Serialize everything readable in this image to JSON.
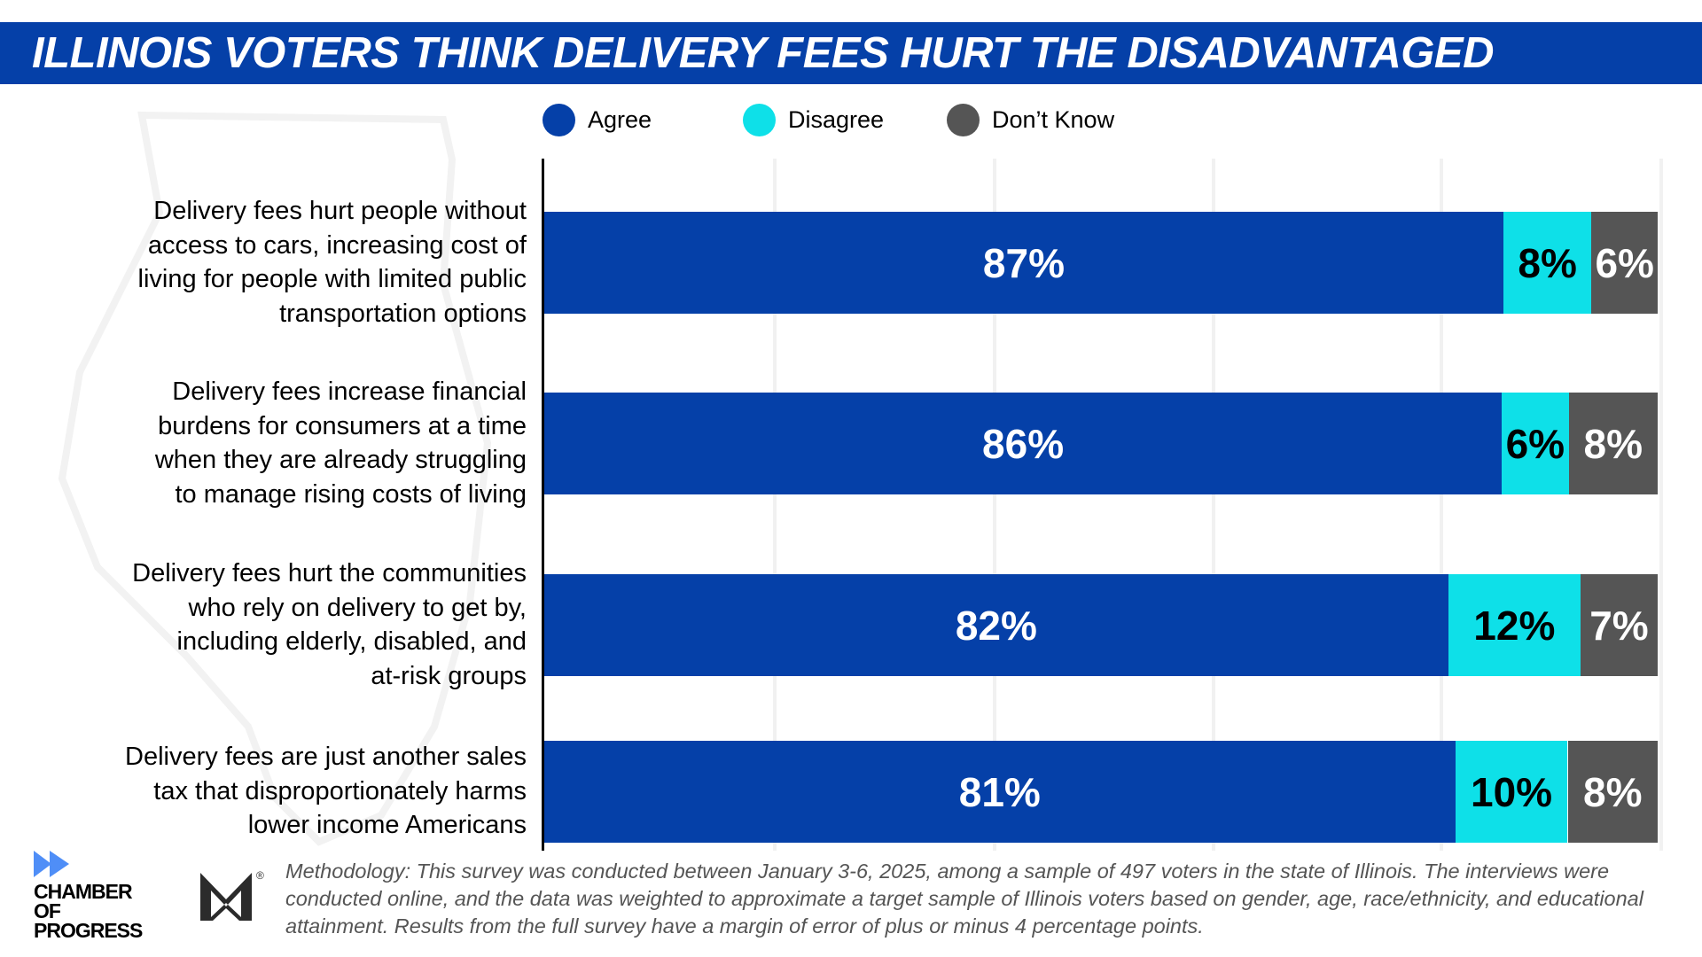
{
  "title": "ILLINOIS VOTERS THINK DELIVERY FEES HURT THE DISADVANTAGED",
  "colors": {
    "agree": "#0540a8",
    "disagree": "#0ee0e8",
    "dont_know": "#555555"
  },
  "legend": [
    {
      "label": "Agree",
      "color": "#0540a8"
    },
    {
      "label": "Disagree",
      "color": "#0ee0e8"
    },
    {
      "label": "Don’t Know",
      "color": "#555555"
    }
  ],
  "chart_data": {
    "type": "bar",
    "stacked": true,
    "orientation": "horizontal",
    "title": "ILLINOIS VOTERS THINK DELIVERY FEES HURT THE DISADVANTAGED",
    "legend_placement": "top",
    "categories": [
      "Delivery fees hurt people without access to cars, increasing cost of living for people with limited public transportation options",
      "Delivery fees increase financial burdens for consumers at a time when they are already struggling to manage rising costs of living",
      "Delivery fees hurt the communities who rely on delivery to get by, including elderly, disabled, and at-risk groups",
      "Delivery fees are just another sales tax that disproportionately harms lower income Americans"
    ],
    "category_lines": [
      [
        "Delivery fees hurt people without",
        "access to cars, increasing cost of",
        "living for people with limited public",
        "transportation options"
      ],
      [
        "Delivery fees increase financial",
        "burdens for consumers at a time",
        "when they are already struggling",
        "to manage rising costs of living"
      ],
      [
        "Delivery fees hurt the communities",
        "who rely on delivery to get by,",
        "including elderly, disabled, and",
        "at-risk groups"
      ],
      [
        "Delivery fees are just another sales",
        "tax that disproportionately harms",
        "lower income Americans"
      ]
    ],
    "series": [
      {
        "name": "Agree",
        "values": [
          87,
          86,
          82,
          81
        ],
        "labels": [
          "87%",
          "86%",
          "82%",
          "81%"
        ]
      },
      {
        "name": "Disagree",
        "values": [
          8,
          6,
          12,
          10
        ],
        "labels": [
          "8%",
          "6%",
          "12%",
          "10%"
        ]
      },
      {
        "name": "Don’t Know",
        "values": [
          6,
          8,
          7,
          8
        ],
        "labels": [
          "6%",
          "8%",
          "7%",
          "8%"
        ]
      }
    ],
    "grid": true
  },
  "footer": {
    "logo_text": "CHAMBER OF PROGRESS",
    "registered": "®",
    "methodology": "Methodology: This survey was conducted between January 3-6, 2025, among a sample of 497 voters in the state of Illinois. The interviews were conducted online, and the data was weighted to approximate a target sample of Illinois voters based on gender, age, race/ethnicity, and educational attainment. Results from the full survey have a margin of error of plus or minus 4 percentage points."
  }
}
